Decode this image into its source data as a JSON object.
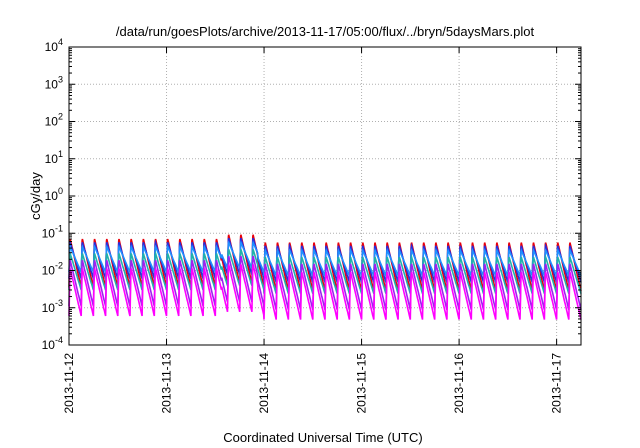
{
  "chart_data": {
    "type": "line",
    "title": "/data/run/goesPlots/archive/2013-11-17/05:00/flux/../bryn/5daysMars.plot",
    "xlabel": "Coordinated Universal Time (UTC)",
    "ylabel": "cGy/day",
    "yscale": "log",
    "ylim": [
      0.0001,
      10000
    ],
    "xlim": [
      "2013-11-12",
      "2013-11-17 06:00"
    ],
    "grid": true,
    "x_ticks": [
      "2013-11-12",
      "2013-11-13",
      "2013-11-14",
      "2013-11-15",
      "2013-11-16",
      "2013-11-17"
    ],
    "y_ticks": [
      {
        "base": "10",
        "exp": "-4"
      },
      {
        "base": "10",
        "exp": "-3"
      },
      {
        "base": "10",
        "exp": "-2"
      },
      {
        "base": "10",
        "exp": "-1"
      },
      {
        "base": "10",
        "exp": "0"
      },
      {
        "base": "10",
        "exp": "1"
      },
      {
        "base": "10",
        "exp": "2"
      },
      {
        "base": "10",
        "exp": "3"
      },
      {
        "base": "10",
        "exp": "4"
      }
    ],
    "cycles_per_day": 8,
    "series": [
      {
        "color": "#e8000b",
        "peak": 0.075,
        "trough": 0.0035
      },
      {
        "color": "#2b2bd9",
        "peak": 0.06,
        "trough": 0.006
      },
      {
        "color": "#1e90ff",
        "peak": 0.045,
        "trough": 0.009
      },
      {
        "color": "#20b2aa",
        "peak": 0.03,
        "trough": 0.003
      },
      {
        "color": "#a020f0",
        "peak": 0.02,
        "trough": 0.0011
      },
      {
        "color": "#ff00ff",
        "peak": 0.012,
        "trough": 0.0006
      }
    ],
    "day_factors": [
      1.0,
      1.0,
      0.8,
      0.8,
      0.8,
      0.8
    ],
    "event_bump": {
      "date": "2013-11-13 18:00",
      "factor": 1.3
    }
  }
}
